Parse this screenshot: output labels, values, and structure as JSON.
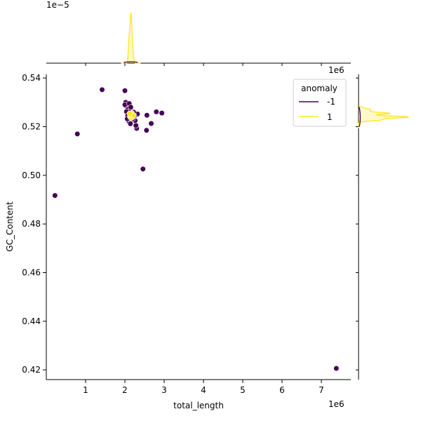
{
  "chart_data": {
    "type": "scatter",
    "title": "",
    "xlabel": "total_length",
    "ylabel": "GC_Content",
    "x_offset_label": "1e6",
    "y_top_offset_label": "1e6",
    "top_marginal_offset_label": "1e−5",
    "xlim": [
      0,
      7.75
    ],
    "ylim": [
      0.416,
      0.5415
    ],
    "x_ticks": [
      1,
      2,
      3,
      4,
      5,
      6,
      7
    ],
    "x_tick_labels": [
      "1",
      "2",
      "3",
      "4",
      "5",
      "6",
      "7"
    ],
    "y_ticks": [
      0.42,
      0.44,
      0.46,
      0.48,
      0.5,
      0.52,
      0.54
    ],
    "y_tick_labels": [
      "0.42",
      "0.44",
      "0.46",
      "0.48",
      "0.50",
      "0.52",
      "0.54"
    ],
    "grid": false,
    "legend": {
      "title": "anomaly",
      "placement": "top-right",
      "entries": [
        {
          "label": "-1",
          "color": "#440154"
        },
        {
          "label": "1",
          "color": "#fde725"
        }
      ]
    },
    "series": [
      {
        "name": "-1",
        "color": "#440154",
        "points": [
          [
            0.22,
            0.4917
          ],
          [
            0.79,
            0.517
          ],
          [
            1.42,
            0.5352
          ],
          [
            2.0,
            0.5348
          ],
          [
            2.46,
            0.5026
          ],
          [
            7.38,
            0.4206
          ],
          [
            2.55,
            0.5185
          ],
          [
            2.67,
            0.5213
          ],
          [
            2.8,
            0.5261
          ],
          [
            2.94,
            0.5256
          ],
          [
            2.56,
            0.5247
          ],
          [
            2.3,
            0.5193
          ],
          [
            2.28,
            0.5205
          ],
          [
            2.26,
            0.5225
          ],
          [
            2.32,
            0.5252
          ],
          [
            2.1,
            0.5222
          ],
          [
            2.02,
            0.53
          ],
          [
            2.05,
            0.5282
          ],
          [
            2.08,
            0.5272
          ],
          [
            2.12,
            0.5262
          ],
          [
            2.17,
            0.5252
          ],
          [
            2.2,
            0.5232
          ],
          [
            2.14,
            0.5212
          ],
          [
            2.04,
            0.5262
          ],
          [
            2.07,
            0.5245
          ],
          [
            2.18,
            0.5238
          ],
          [
            2.24,
            0.5244
          ],
          [
            2.0,
            0.529
          ],
          [
            2.11,
            0.5295
          ],
          [
            2.15,
            0.528
          ],
          [
            2.06,
            0.5232
          ],
          [
            2.22,
            0.526
          ]
        ]
      },
      {
        "name": "1",
        "color": "#fde725",
        "points": [
          [
            2.15,
            0.5252
          ],
          [
            2.17,
            0.5245
          ],
          [
            2.19,
            0.525
          ],
          [
            2.13,
            0.524
          ],
          [
            2.16,
            0.5236
          ],
          [
            2.2,
            0.5242
          ],
          [
            2.18,
            0.5256
          ],
          [
            2.14,
            0.5248
          ],
          [
            2.22,
            0.5246
          ],
          [
            2.12,
            0.5254
          ]
        ]
      }
    ],
    "marginal_top": {
      "peak_x": 2.15,
      "description_series": "1"
    },
    "marginal_right": {
      "peak_y": 0.524,
      "series": [
        "1",
        "-1"
      ]
    }
  }
}
